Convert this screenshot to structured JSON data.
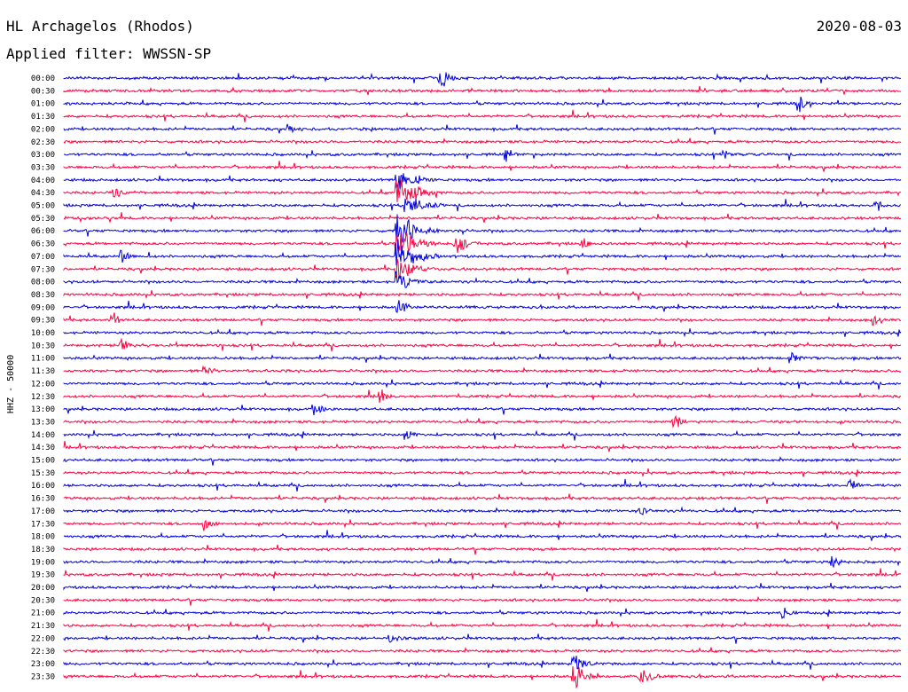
{
  "header": {
    "station": "HL Archagelos (Rhodos)",
    "date": "2020-08-03",
    "filter": "Applied filter: WWSSN-SP"
  },
  "chart_data": {
    "type": "line",
    "title": "HL Archagelos (Rhodos)",
    "ylabel": "HHZ - 50000",
    "colors": [
      "#0000dd",
      "#ff0040"
    ],
    "rows": [
      "00:00",
      "00:30",
      "01:00",
      "01:30",
      "02:00",
      "02:30",
      "03:00",
      "03:30",
      "04:00",
      "04:30",
      "05:00",
      "05:30",
      "06:00",
      "06:30",
      "07:00",
      "07:30",
      "08:00",
      "08:30",
      "09:00",
      "09:30",
      "10:00",
      "10:30",
      "11:00",
      "11:30",
      "12:00",
      "12:30",
      "13:00",
      "13:30",
      "14:00",
      "14:30",
      "15:00",
      "15:30",
      "16:00",
      "16:30",
      "17:00",
      "17:30",
      "18:00",
      "18:30",
      "19:00",
      "19:30",
      "20:00",
      "20:30",
      "21:00",
      "21:30",
      "22:00",
      "22:30",
      "23:00",
      "23:30"
    ],
    "events": [
      {
        "row": 0,
        "x": 0.45,
        "amp": 14,
        "len": 0.03
      },
      {
        "row": 2,
        "x": 0.88,
        "amp": 10,
        "len": 0.02
      },
      {
        "row": 4,
        "x": 0.27,
        "amp": 8,
        "len": 0.02
      },
      {
        "row": 6,
        "x": 0.53,
        "amp": 10,
        "len": 0.015
      },
      {
        "row": 6,
        "x": 0.79,
        "amp": 9,
        "len": 0.015
      },
      {
        "row": 8,
        "x": 0.4,
        "amp": 14,
        "len": 0.05
      },
      {
        "row": 9,
        "x": 0.4,
        "amp": 18,
        "len": 0.06
      },
      {
        "row": 9,
        "x": 0.06,
        "amp": 10,
        "len": 0.02
      },
      {
        "row": 10,
        "x": 0.41,
        "amp": 14,
        "len": 0.05
      },
      {
        "row": 10,
        "x": 0.97,
        "amp": 10,
        "len": 0.02
      },
      {
        "row": 12,
        "x": 0.4,
        "amp": 22,
        "len": 0.05
      },
      {
        "row": 13,
        "x": 0.4,
        "amp": 22,
        "len": 0.05
      },
      {
        "row": 13,
        "x": 0.47,
        "amp": 12,
        "len": 0.03
      },
      {
        "row": 13,
        "x": 0.62,
        "amp": 10,
        "len": 0.02
      },
      {
        "row": 14,
        "x": 0.4,
        "amp": 22,
        "len": 0.05
      },
      {
        "row": 14,
        "x": 0.07,
        "amp": 10,
        "len": 0.02
      },
      {
        "row": 15,
        "x": 0.4,
        "amp": 16,
        "len": 0.05
      },
      {
        "row": 16,
        "x": 0.4,
        "amp": 14,
        "len": 0.04
      },
      {
        "row": 18,
        "x": 0.4,
        "amp": 10,
        "len": 0.03
      },
      {
        "row": 19,
        "x": 0.06,
        "amp": 10,
        "len": 0.02
      },
      {
        "row": 19,
        "x": 0.97,
        "amp": 9,
        "len": 0.02
      },
      {
        "row": 21,
        "x": 0.07,
        "amp": 9,
        "len": 0.02
      },
      {
        "row": 22,
        "x": 0.87,
        "amp": 9,
        "len": 0.02
      },
      {
        "row": 23,
        "x": 0.17,
        "amp": 10,
        "len": 0.02
      },
      {
        "row": 25,
        "x": 0.38,
        "amp": 10,
        "len": 0.02
      },
      {
        "row": 26,
        "x": 0.3,
        "amp": 11,
        "len": 0.02
      },
      {
        "row": 27,
        "x": 0.73,
        "amp": 10,
        "len": 0.02
      },
      {
        "row": 28,
        "x": 0.41,
        "amp": 9,
        "len": 0.02
      },
      {
        "row": 32,
        "x": 0.94,
        "amp": 9,
        "len": 0.02
      },
      {
        "row": 34,
        "x": 0.69,
        "amp": 9,
        "len": 0.02
      },
      {
        "row": 35,
        "x": 0.17,
        "amp": 9,
        "len": 0.02
      },
      {
        "row": 38,
        "x": 0.92,
        "amp": 9,
        "len": 0.02
      },
      {
        "row": 42,
        "x": 0.86,
        "amp": 10,
        "len": 0.02
      },
      {
        "row": 44,
        "x": 0.39,
        "amp": 7,
        "len": 0.03
      },
      {
        "row": 46,
        "x": 0.61,
        "amp": 14,
        "len": 0.03
      },
      {
        "row": 47,
        "x": 0.61,
        "amp": 20,
        "len": 0.03
      },
      {
        "row": 47,
        "x": 0.69,
        "amp": 10,
        "len": 0.04
      }
    ]
  }
}
